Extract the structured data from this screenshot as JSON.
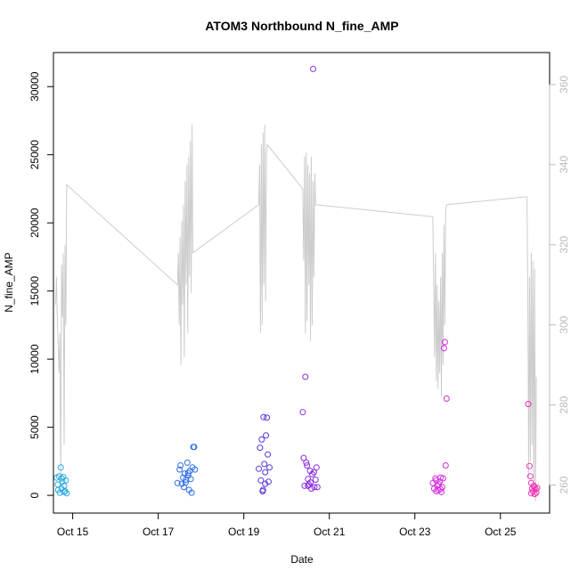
{
  "chart_data": {
    "type": "scatter",
    "title": "ATOM3 Northbound N_fine_AMP",
    "xlabel": "Date",
    "ylabel": "N_fine_AMP",
    "x_ticks": [
      "Oct 15",
      "Oct 17",
      "Oct 19",
      "Oct 21",
      "Oct 23",
      "Oct 25"
    ],
    "x_tick_days": [
      15,
      17,
      19,
      21,
      23,
      25
    ],
    "xlim": [
      14.55,
      26.15
    ],
    "ylim": [
      -1300,
      32500
    ],
    "y_ticks": [
      0,
      5000,
      10000,
      15000,
      20000,
      25000,
      30000
    ],
    "y2lim": [
      253,
      368
    ],
    "y2_ticks": [
      260,
      280,
      300,
      320,
      340,
      360
    ],
    "line_color": "#cccccc",
    "series": [
      {
        "color": "#29a9e0",
        "points": [
          [
            14.62,
            1300
          ],
          [
            14.65,
            800
          ],
          [
            14.68,
            1400
          ],
          [
            14.7,
            200
          ],
          [
            14.72,
            2050
          ],
          [
            14.74,
            500
          ],
          [
            14.76,
            1000
          ],
          [
            14.78,
            1350
          ],
          [
            14.8,
            700
          ],
          [
            14.82,
            300
          ],
          [
            14.84,
            1100
          ],
          [
            14.86,
            150
          ],
          [
            14.66,
            400
          ],
          [
            14.74,
            1250
          ],
          [
            14.8,
            250
          ]
        ]
      },
      {
        "color": "#2f6fe6",
        "points": [
          [
            17.45,
            900
          ],
          [
            17.5,
            1900
          ],
          [
            17.52,
            2200
          ],
          [
            17.55,
            850
          ],
          [
            17.58,
            1300
          ],
          [
            17.6,
            600
          ],
          [
            17.62,
            1600
          ],
          [
            17.65,
            1150
          ],
          [
            17.68,
            2400
          ],
          [
            17.7,
            1450
          ],
          [
            17.72,
            400
          ],
          [
            17.74,
            1800
          ],
          [
            17.76,
            1200
          ],
          [
            17.78,
            200
          ],
          [
            17.8,
            2050
          ],
          [
            17.82,
            3550
          ],
          [
            17.84,
            3550
          ],
          [
            17.86,
            1900
          ],
          [
            17.64,
            950
          ],
          [
            17.7,
            1650
          ]
        ]
      },
      {
        "color": "#5a35d8",
        "points": [
          [
            19.35,
            1950
          ],
          [
            19.38,
            3500
          ],
          [
            19.4,
            1100
          ],
          [
            19.42,
            4100
          ],
          [
            19.44,
            300
          ],
          [
            19.46,
            5750
          ],
          [
            19.48,
            2300
          ],
          [
            19.5,
            1700
          ],
          [
            19.52,
            4400
          ],
          [
            19.54,
            5700
          ],
          [
            19.56,
            3000
          ],
          [
            19.58,
            1000
          ],
          [
            19.6,
            2050
          ],
          [
            19.45,
            400
          ],
          [
            19.5,
            850
          ]
        ]
      },
      {
        "color": "#8a2fe0",
        "points": [
          [
            20.38,
            6100
          ],
          [
            20.4,
            2750
          ],
          [
            20.42,
            700
          ],
          [
            20.44,
            8700
          ],
          [
            20.46,
            2400
          ],
          [
            20.48,
            2200
          ],
          [
            20.5,
            1200
          ],
          [
            20.52,
            800
          ],
          [
            20.55,
            1800
          ],
          [
            20.58,
            500
          ],
          [
            20.6,
            1550
          ],
          [
            20.62,
            31300
          ],
          [
            20.65,
            600
          ],
          [
            20.68,
            1150
          ],
          [
            20.7,
            2050
          ],
          [
            20.72,
            600
          ],
          [
            20.5,
            700
          ],
          [
            20.56,
            950
          ],
          [
            20.64,
            1700
          ]
        ]
      },
      {
        "color": "#d42be0",
        "points": [
          [
            23.42,
            900
          ],
          [
            23.45,
            500
          ],
          [
            23.48,
            1250
          ],
          [
            23.5,
            300
          ],
          [
            23.52,
            700
          ],
          [
            23.55,
            400
          ],
          [
            23.58,
            1000
          ],
          [
            23.6,
            1300
          ],
          [
            23.62,
            250
          ],
          [
            23.64,
            600
          ],
          [
            23.66,
            1250
          ],
          [
            23.68,
            10800
          ],
          [
            23.7,
            11250
          ],
          [
            23.72,
            2200
          ],
          [
            23.74,
            7100
          ],
          [
            23.56,
            800
          ],
          [
            23.6,
            450
          ],
          [
            23.5,
            1100
          ]
        ]
      },
      {
        "color": "#f030b4",
        "points": [
          [
            25.65,
            6700
          ],
          [
            25.68,
            2150
          ],
          [
            25.7,
            1400
          ],
          [
            25.72,
            900
          ],
          [
            25.74,
            500
          ],
          [
            25.76,
            300
          ],
          [
            25.78,
            700
          ],
          [
            25.8,
            100
          ],
          [
            25.82,
            450
          ],
          [
            25.84,
            200
          ],
          [
            25.86,
            550
          ],
          [
            25.72,
            150
          ],
          [
            25.8,
            600
          ]
        ]
      }
    ],
    "line_right_axis": [
      [
        14.6,
        305
      ],
      [
        14.62,
        312
      ],
      [
        14.64,
        302
      ],
      [
        14.66,
        295
      ],
      [
        14.68,
        288
      ],
      [
        14.7,
        298
      ],
      [
        14.72,
        260
      ],
      [
        14.74,
        315
      ],
      [
        14.76,
        302
      ],
      [
        14.78,
        318
      ],
      [
        14.8,
        270
      ],
      [
        14.82,
        320
      ],
      [
        14.84,
        300
      ],
      [
        14.86,
        335
      ],
      [
        17.45,
        310
      ],
      [
        17.47,
        318
      ],
      [
        17.49,
        300
      ],
      [
        17.51,
        322
      ],
      [
        17.53,
        290
      ],
      [
        17.55,
        326
      ],
      [
        17.57,
        305
      ],
      [
        17.59,
        330
      ],
      [
        17.61,
        292
      ],
      [
        17.63,
        336
      ],
      [
        17.65,
        310
      ],
      [
        17.67,
        340
      ],
      [
        17.69,
        298
      ],
      [
        17.71,
        342
      ],
      [
        17.73,
        312
      ],
      [
        17.75,
        346
      ],
      [
        17.77,
        308
      ],
      [
        17.79,
        350
      ],
      [
        17.81,
        318
      ],
      [
        19.35,
        330
      ],
      [
        19.37,
        340
      ],
      [
        19.39,
        298
      ],
      [
        19.41,
        345
      ],
      [
        19.43,
        300
      ],
      [
        19.45,
        348
      ],
      [
        19.47,
        310
      ],
      [
        19.49,
        350
      ],
      [
        19.51,
        306
      ],
      [
        19.53,
        343
      ],
      [
        19.55,
        345
      ],
      [
        20.38,
        334
      ],
      [
        20.4,
        316
      ],
      [
        20.42,
        342
      ],
      [
        20.44,
        298
      ],
      [
        20.46,
        343
      ],
      [
        20.48,
        301
      ],
      [
        20.5,
        340
      ],
      [
        20.52,
        310
      ],
      [
        20.54,
        338
      ],
      [
        20.56,
        296
      ],
      [
        20.58,
        342
      ],
      [
        20.6,
        300
      ],
      [
        20.62,
        336
      ],
      [
        20.64,
        312
      ],
      [
        20.66,
        338
      ],
      [
        20.68,
        330
      ],
      [
        23.42,
        327
      ],
      [
        23.44,
        310
      ],
      [
        23.46,
        292
      ],
      [
        23.48,
        318
      ],
      [
        23.5,
        286
      ],
      [
        23.52,
        310
      ],
      [
        23.54,
        284
      ],
      [
        23.56,
        306
      ],
      [
        23.58,
        288
      ],
      [
        23.6,
        312
      ],
      [
        23.62,
        282
      ],
      [
        23.64,
        318
      ],
      [
        23.66,
        290
      ],
      [
        23.68,
        325
      ],
      [
        23.7,
        300
      ],
      [
        23.72,
        328
      ],
      [
        23.74,
        330
      ],
      [
        25.62,
        332
      ],
      [
        25.64,
        310
      ],
      [
        25.66,
        262
      ],
      [
        25.68,
        312
      ],
      [
        25.7,
        266
      ],
      [
        25.72,
        318
      ],
      [
        25.74,
        270
      ],
      [
        25.76,
        316
      ],
      [
        25.78,
        258
      ],
      [
        25.8,
        314
      ],
      [
        25.82,
        256
      ],
      [
        25.84,
        287
      ]
    ]
  }
}
